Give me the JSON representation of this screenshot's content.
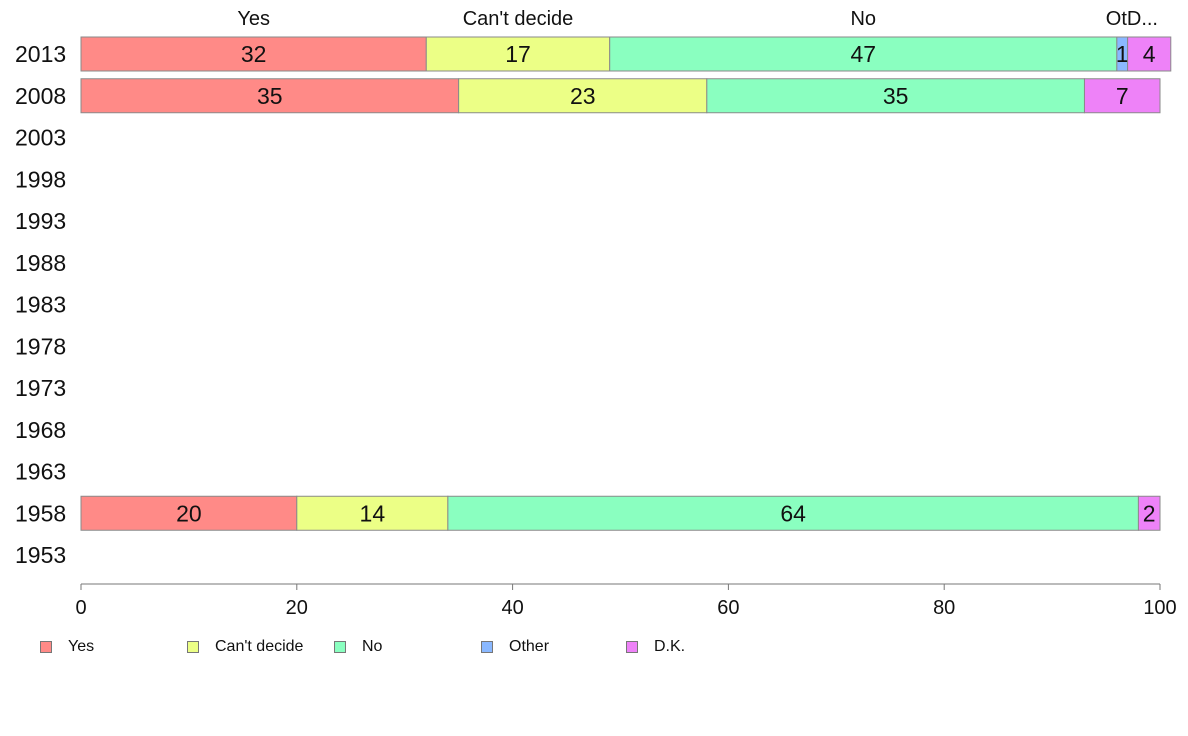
{
  "chart_data": {
    "type": "bar",
    "orientation": "horizontal",
    "stacked": true,
    "title": "",
    "xlabel": "",
    "ylabel": "",
    "xlim": [
      0,
      100
    ],
    "x_ticks": [
      0,
      20,
      40,
      60,
      80,
      100
    ],
    "grid": false,
    "legend_position": "bottom-left",
    "categories": [
      "2013",
      "2008",
      "2003",
      "1998",
      "1993",
      "1988",
      "1983",
      "1978",
      "1973",
      "1968",
      "1963",
      "1958",
      "1953"
    ],
    "series": [
      {
        "name": "Yes",
        "color": "#ff8a87",
        "values": [
          32,
          35,
          null,
          null,
          null,
          null,
          null,
          null,
          null,
          null,
          null,
          20,
          null
        ]
      },
      {
        "name": "Can't decide",
        "color": "#ecff86",
        "values": [
          17,
          23,
          null,
          null,
          null,
          null,
          null,
          null,
          null,
          null,
          null,
          14,
          null
        ]
      },
      {
        "name": "No",
        "color": "#8affc0",
        "values": [
          47,
          35,
          null,
          null,
          null,
          null,
          null,
          null,
          null,
          null,
          null,
          64,
          null
        ]
      },
      {
        "name": "Other",
        "color": "#8ab8ff",
        "values": [
          1,
          0,
          null,
          null,
          null,
          null,
          null,
          null,
          null,
          null,
          null,
          0,
          null
        ]
      },
      {
        "name": "D.K.",
        "color": "#ee82f8",
        "values": [
          4,
          7,
          null,
          null,
          null,
          null,
          null,
          null,
          null,
          null,
          null,
          2,
          null
        ]
      }
    ],
    "top_labels": [
      "Yes",
      "Can't decide",
      "No",
      "OtD..."
    ]
  }
}
